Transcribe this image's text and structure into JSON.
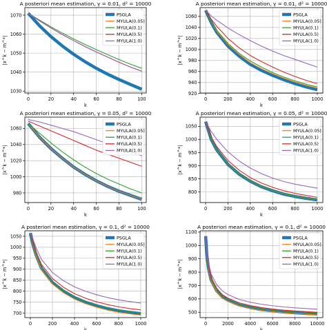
{
  "legend_labels": [
    "PSGLA",
    "MYULA(0.05)",
    "MYULA(0.1)",
    "MYULA(0.5)",
    "MYULA(1.0)"
  ],
  "colors": {
    "PSGLA": "#1f77b4",
    "MYULA(0.05)": "#ff7f0e",
    "MYULA(0.1)": "#2ca02c",
    "MYULA(0.5)": "#d62728",
    "MYULA(1.0)": "#9467bd",
    "grid": "#b0b0b0"
  },
  "chart_data": [
    {
      "type": "line",
      "title": "A posteriori mean estimation, γ = 0.01, d² = 10000",
      "xlabel": "k",
      "ylabel": "|x^k − m^*|",
      "xlim": [
        -3,
        104
      ],
      "ylim": [
        1029,
        1074
      ],
      "xticks": [
        0,
        20,
        40,
        60,
        80,
        100
      ],
      "xtick_labels": [
        "0",
        "20",
        "40",
        "60",
        "80",
        "100"
      ],
      "yticks": [
        1030,
        1040,
        1050,
        1060,
        1070
      ],
      "ytick_labels": [
        "1030",
        "1040",
        "1050",
        "1060",
        "1070"
      ],
      "grid": true,
      "legend": "top-right",
      "x": [
        0,
        10,
        20,
        30,
        40,
        50,
        60,
        70,
        80,
        90,
        100
      ],
      "series": [
        {
          "name": "PSGLA",
          "values": [
            1071,
            1064.4,
            1058.7,
            1053.8,
            1049.4,
            1045.5,
            1042,
            1038.9,
            1036.1,
            1033.5,
            1031
          ]
        },
        {
          "name": "MYULA(0.05)",
          "values": [
            1071,
            1067,
            1063.3,
            1059.8,
            1056.6,
            1053.5,
            1050.6,
            1047.9,
            1045.2,
            1042.7,
            1040.5
          ]
        },
        {
          "name": "MYULA(0.1)",
          "values": [
            1071,
            1067.4,
            1063.9,
            1060.6,
            1057.5,
            1054.6,
            1051.8,
            1049.2,
            1046.6,
            1044.2,
            1042
          ]
        },
        {
          "name": "MYULA(0.5)",
          "values": [
            1071,
            1067,
            1063.3,
            1059.8,
            1056.6,
            1053.5,
            1050.6,
            1047.9,
            1045.2,
            1042.7,
            1040.5
          ]
        },
        {
          "name": "MYULA(1.0)",
          "values": [
            1071,
            1067,
            1063.3,
            1059.8,
            1056.6,
            1053.5,
            1050.6,
            1047.9,
            1045.2,
            1042.7,
            1040.5
          ]
        }
      ]
    },
    {
      "type": "line",
      "title": "A posteriori mean estimation, γ = 0.01, d² = 10000",
      "xlabel": "k",
      "ylabel": "|x^k − m^*|",
      "xlim": [
        -50,
        1050
      ],
      "ylim": [
        921,
        1076
      ],
      "xticks": [
        0,
        200,
        400,
        600,
        800,
        1000
      ],
      "xtick_labels": [
        "0",
        "200",
        "400",
        "600",
        "800",
        "1000"
      ],
      "yticks": [
        920,
        940,
        960,
        980,
        1000,
        1020,
        1040,
        1060
      ],
      "ytick_labels": [
        "920",
        "940",
        "960",
        "980",
        "1000",
        "1020",
        "1040",
        "1060"
      ],
      "grid": true,
      "legend": "top-right",
      "x": [
        0,
        50,
        100,
        200,
        300,
        400,
        500,
        600,
        700,
        800,
        900,
        1000
      ],
      "series": [
        {
          "name": "PSGLA",
          "values": [
            1071,
            1049,
            1031,
            1006,
            988,
            973,
            962,
            953,
            945,
            938,
            932,
            927
          ]
        },
        {
          "name": "MYULA(0.05)",
          "values": [
            1071,
            1050,
            1033,
            1009,
            991,
            976,
            965,
            956,
            948,
            941,
            935,
            930
          ]
        },
        {
          "name": "MYULA(0.1)",
          "values": [
            1071,
            1051,
            1035,
            1011,
            993,
            979,
            968,
            958,
            950,
            943,
            937,
            932
          ]
        },
        {
          "name": "MYULA(0.5)",
          "values": [
            1071,
            1055,
            1042,
            1020,
            1003,
            989,
            978,
            968,
            959,
            951,
            944,
            938
          ]
        },
        {
          "name": "MYULA(1.0)",
          "values": [
            1071,
            1061,
            1053,
            1039,
            1027,
            1016,
            1006,
            997,
            989,
            982,
            975,
            968
          ]
        }
      ]
    },
    {
      "type": "line",
      "title": "A posteriori mean estimation, γ = 0.05, d² = 10000",
      "xlabel": "k",
      "ylabel": "|x^k − m^*|",
      "xlim": [
        -3,
        104
      ],
      "ylim": [
        968,
        1074
      ],
      "xticks": [
        0,
        20,
        40,
        60,
        80,
        100
      ],
      "xtick_labels": [
        "0",
        "20",
        "40",
        "60",
        "80",
        "100"
      ],
      "yticks": [
        980,
        1000,
        1020,
        1040,
        1060
      ],
      "ytick_labels": [
        "980",
        "1000",
        "1020",
        "1040",
        "1060"
      ],
      "grid": true,
      "legend": "top-right",
      "x": [
        0,
        10,
        20,
        30,
        40,
        50,
        60,
        70,
        80,
        90,
        100
      ],
      "series": [
        {
          "name": "PSGLA",
          "values": [
            1066,
            1049,
            1035,
            1023,
            1012,
            1003,
            995,
            988,
            982,
            977,
            972
          ]
        },
        {
          "name": "MYULA(0.05)",
          "values": [
            1066,
            1049,
            1035,
            1023,
            1012,
            1003,
            995,
            988,
            982,
            977,
            972
          ]
        },
        {
          "name": "MYULA(0.1)",
          "values": [
            1066,
            1054,
            1042,
            1031,
            1021,
            1012,
            1004,
            997,
            991,
            985,
            980
          ]
        },
        {
          "name": "MYULA(0.5)",
          "values": [
            1069,
            1063,
            1057,
            1051,
            1045,
            1039,
            1033,
            1028,
            1023,
            1018,
            1013
          ]
        },
        {
          "name": "MYULA(1.0)",
          "values": [
            1071,
            1068,
            1064,
            1060,
            1056,
            1051,
            1046,
            1041,
            1036,
            1031,
            1026
          ]
        }
      ]
    },
    {
      "type": "line",
      "title": "A posteriori mean estimation, γ = 0.05, d² = 10000",
      "xlabel": "k",
      "ylabel": "|x^k − m^*|",
      "xlim": [
        -50,
        1050
      ],
      "ylim": [
        760,
        1085
      ],
      "xticks": [
        0,
        200,
        400,
        600,
        800,
        1000
      ],
      "xtick_labels": [
        "0",
        "200",
        "400",
        "600",
        "800",
        "1000"
      ],
      "yticks": [
        800,
        850,
        900,
        950,
        1000,
        1050
      ],
      "ytick_labels": [
        "800",
        "850",
        "900",
        "950",
        "1000",
        "1050"
      ],
      "grid": true,
      "legend": "top-right",
      "x": [
        0,
        50,
        100,
        200,
        300,
        400,
        500,
        600,
        700,
        800,
        900,
        1000
      ],
      "series": [
        {
          "name": "PSGLA",
          "values": [
            1068,
            1000,
            960,
            905,
            868,
            841,
            820,
            805,
            792,
            783,
            776,
            770
          ]
        },
        {
          "name": "MYULA(0.05)",
          "values": [
            1068,
            1001,
            961,
            906,
            869,
            842,
            821,
            806,
            793,
            784,
            777,
            771
          ]
        },
        {
          "name": "MYULA(0.1)",
          "values": [
            1068,
            1002,
            962,
            907,
            870,
            843,
            822,
            807,
            794,
            785,
            778,
            772
          ]
        },
        {
          "name": "MYULA(0.5)",
          "values": [
            1068,
            1010,
            973,
            920,
            883,
            855,
            834,
            818,
            805,
            795,
            787,
            780
          ]
        },
        {
          "name": "MYULA(1.0)",
          "values": [
            1068,
            1030,
            1000,
            953,
            918,
            891,
            870,
            853,
            840,
            830,
            822,
            815
          ]
        }
      ]
    },
    {
      "type": "line",
      "title": "A posteriori mean estimation, γ = 0.1, d² = 10000",
      "xlabel": "k",
      "ylabel": "|x^k − m^*|",
      "xlim": [
        -50,
        1050
      ],
      "ylim": [
        680,
        1075
      ],
      "xticks": [
        0,
        200,
        400,
        600,
        800,
        1000
      ],
      "xtick_labels": [
        "0",
        "200",
        "400",
        "600",
        "800",
        "1000"
      ],
      "yticks": [
        700,
        750,
        800,
        850,
        900,
        950,
        1000,
        1050
      ],
      "ytick_labels": [
        "700",
        "750",
        "800",
        "850",
        "900",
        "950",
        "1000",
        "1050"
      ],
      "grid": true,
      "legend": "top-right",
      "x": [
        0,
        25,
        50,
        100,
        200,
        300,
        400,
        500,
        600,
        700,
        800,
        900,
        1000
      ],
      "series": [
        {
          "name": "PSGLA",
          "values": [
            1065,
            1010,
            968,
            905,
            840,
            800,
            771,
            750,
            734,
            721,
            711,
            704,
            698
          ]
        },
        {
          "name": "MYULA(0.05)",
          "values": [
            1065,
            1005,
            962,
            898,
            833,
            793,
            764,
            743,
            727,
            714,
            704,
            697,
            691
          ]
        },
        {
          "name": "MYULA(0.1)",
          "values": [
            1065,
            1012,
            970,
            907,
            842,
            802,
            773,
            752,
            736,
            723,
            713,
            706,
            700
          ]
        },
        {
          "name": "MYULA(0.5)",
          "values": [
            1065,
            1020,
            982,
            922,
            858,
            818,
            789,
            768,
            752,
            739,
            729,
            721,
            715
          ]
        },
        {
          "name": "MYULA(1.0)",
          "values": [
            1065,
            1035,
            1000,
            945,
            885,
            848,
            820,
            800,
            784,
            771,
            761,
            753,
            746
          ]
        }
      ]
    },
    {
      "type": "line",
      "title": "A posteriori mean estimation, γ = 0.1, d² = 10000",
      "xlabel": "k",
      "ylabel": "|x^k − m^*|",
      "xlim": [
        -500,
        10500
      ],
      "ylim": [
        460,
        1110
      ],
      "xticks": [
        0,
        2000,
        4000,
        6000,
        8000,
        10000
      ],
      "xtick_labels": [
        "0",
        "2000",
        "4000",
        "6000",
        "8000",
        "10000"
      ],
      "yticks": [
        500,
        600,
        700,
        800,
        900,
        1000,
        1100
      ],
      "ytick_labels": [
        "500",
        "600",
        "700",
        "800",
        "900",
        "1000",
        "1100"
      ],
      "grid": true,
      "legend": "top-right",
      "x": [
        0,
        100,
        250,
        500,
        1000,
        1500,
        2000,
        3000,
        4000,
        5000,
        6000,
        7000,
        8000,
        9000,
        10000
      ],
      "series": [
        {
          "name": "PSGLA",
          "values": [
            1070,
            930,
            830,
            740,
            660,
            615,
            590,
            555,
            535,
            520,
            510,
            502,
            496,
            491,
            487
          ]
        },
        {
          "name": "MYULA(0.05)",
          "values": [
            1070,
            920,
            820,
            730,
            650,
            606,
            582,
            548,
            528,
            514,
            504,
            496,
            490,
            485,
            480
          ]
        },
        {
          "name": "MYULA(0.1)",
          "values": [
            1070,
            935,
            835,
            745,
            665,
            620,
            595,
            560,
            540,
            525,
            515,
            507,
            501,
            496,
            492
          ]
        },
        {
          "name": "MYULA(0.5)",
          "values": [
            1070,
            945,
            845,
            758,
            678,
            632,
            606,
            571,
            550,
            535,
            524,
            516,
            510,
            505,
            500
          ]
        },
        {
          "name": "MYULA(1.0)",
          "values": [
            1070,
            960,
            870,
            785,
            705,
            660,
            632,
            596,
            575,
            560,
            549,
            540,
            533,
            528,
            523
          ]
        }
      ]
    }
  ]
}
